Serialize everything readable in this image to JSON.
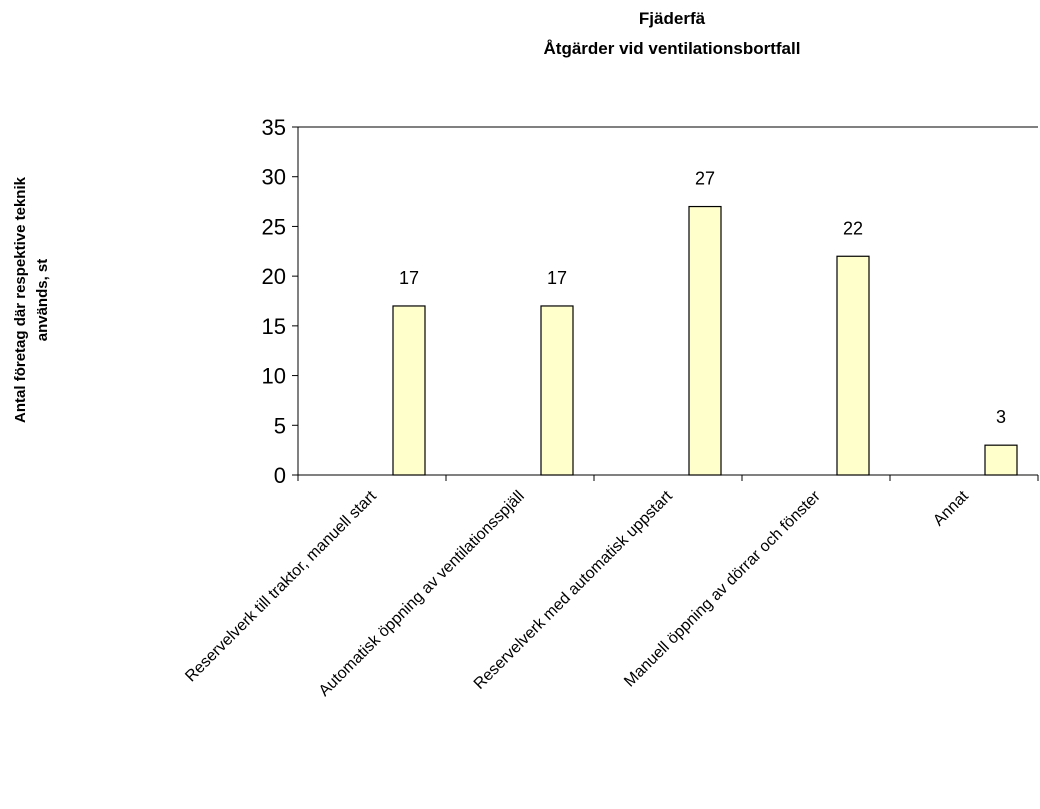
{
  "chart_data": {
    "type": "bar",
    "title": [
      "Fjäderfä",
      "Åtgärder vid ventilationsbortfall"
    ],
    "y_label": [
      "Antal företag där respektive teknik",
      "används, st"
    ],
    "categories": [
      "Reservelverk till traktor, manuell start",
      "Automatisk öppning av ventilationsspjäll",
      "Reservelverk med automatisk uppstart",
      "Manuell öppning av dörrar och fönster",
      "Annat"
    ],
    "values": [
      17,
      17,
      27,
      22,
      3
    ],
    "color": "#ffffcc",
    "ylim": [
      0,
      35
    ],
    "yticks": [
      0,
      5,
      10,
      15,
      20,
      25,
      30,
      35
    ],
    "grid": false
  }
}
